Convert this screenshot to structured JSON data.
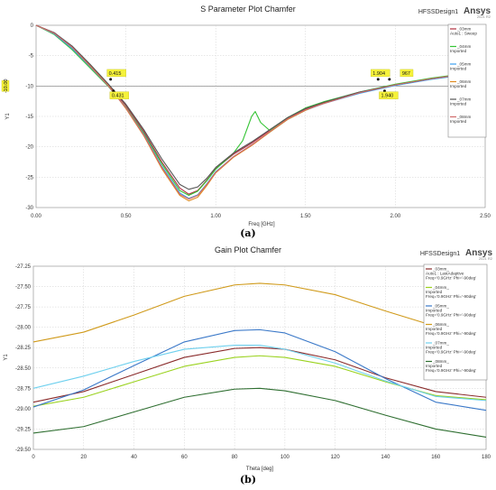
{
  "chart_data": [
    {
      "type": "line",
      "title": "S Parameter Plot Chamfer",
      "design": "HFSSDesign1",
      "brand": "Ansys",
      "brand_sub": "2021 R2",
      "xlabel": "Freq [GHz]",
      "ylabel": "Y1",
      "xlim": [
        0,
        2.5
      ],
      "ylim": [
        -30,
        0
      ],
      "xticks": [
        "0.00",
        "0.50",
        "1.00",
        "1.50",
        "2.00",
        "2.50"
      ],
      "yticks": [
        "0",
        "-5",
        "-10",
        "-15",
        "-20",
        "-25",
        "-30"
      ],
      "grid": true,
      "legend_position": "top-right",
      "reference_line": {
        "y": -10,
        "label": "-10.00"
      },
      "markers": [
        {
          "x": 0.415,
          "y": -8.9,
          "label": "0.415"
        },
        {
          "x": 0.431,
          "y": -10.8,
          "label": "0.431"
        },
        {
          "x": 1.904,
          "y": -8.9,
          "label": "1.904"
        },
        {
          "x": 1.967,
          "y": -8.9,
          "label": "967"
        },
        {
          "x": 1.94,
          "y": -10.8,
          "label": "1.940"
        }
      ],
      "series": [
        {
          "name": "_03mm",
          "legend_sub": "Auto1 : Sweep",
          "color": "#b03040",
          "x": [
            0,
            0.1,
            0.2,
            0.3,
            0.4,
            0.5,
            0.6,
            0.7,
            0.8,
            0.85,
            0.9,
            0.95,
            1.0,
            1.1,
            1.2,
            1.3,
            1.4,
            1.5,
            1.6,
            1.8,
            2.0,
            2.2,
            2.5
          ],
          "y": [
            0,
            -1.2,
            -3.5,
            -6.5,
            -9.7,
            -13.2,
            -17.5,
            -22.5,
            -26.8,
            -27.8,
            -27.2,
            -25.5,
            -23.6,
            -21.2,
            -19.4,
            -17.3,
            -15.3,
            -13.8,
            -12.8,
            -11.1,
            -9.8,
            -8.8,
            -7.6
          ]
        },
        {
          "name": "_04mm",
          "legend_sub": "Imported",
          "color": "#35c435",
          "x": [
            0,
            0.1,
            0.2,
            0.3,
            0.4,
            0.5,
            0.6,
            0.7,
            0.8,
            0.85,
            0.9,
            0.95,
            1.0,
            1.1,
            1.15,
            1.2,
            1.22,
            1.25,
            1.3,
            1.4,
            1.5,
            1.6,
            1.8,
            2.0,
            2.2,
            2.5
          ],
          "y": [
            0,
            -1.5,
            -4.0,
            -7.0,
            -10.0,
            -13.5,
            -17.8,
            -22.8,
            -27.2,
            -28.0,
            -27.3,
            -25.6,
            -23.7,
            -21.0,
            -19.0,
            -15.0,
            -14.2,
            -16.0,
            -17.3,
            -15.2,
            -13.6,
            -12.6,
            -11.0,
            -9.7,
            -8.7,
            -7.5
          ]
        },
        {
          "name": "_05mm",
          "legend_sub": "Imported",
          "color": "#3aa0f0",
          "x": [
            0,
            0.1,
            0.2,
            0.3,
            0.4,
            0.5,
            0.6,
            0.7,
            0.8,
            0.85,
            0.9,
            0.95,
            1.0,
            1.1,
            1.2,
            1.3,
            1.4,
            1.5,
            1.6,
            1.8,
            2.0,
            2.2,
            2.5
          ],
          "y": [
            0,
            -1.4,
            -3.8,
            -6.8,
            -9.9,
            -13.6,
            -18.0,
            -23.2,
            -27.6,
            -28.5,
            -27.9,
            -26.1,
            -24.1,
            -21.6,
            -19.7,
            -17.6,
            -15.5,
            -14.0,
            -12.9,
            -11.2,
            -9.9,
            -8.9,
            -7.7
          ]
        },
        {
          "name": "_06mm",
          "legend_sub": "Imported",
          "color": "#e08a20",
          "x": [
            0,
            0.1,
            0.2,
            0.3,
            0.4,
            0.5,
            0.6,
            0.7,
            0.8,
            0.85,
            0.9,
            0.95,
            1.0,
            1.1,
            1.2,
            1.3,
            1.4,
            1.5,
            1.6,
            1.8,
            2.0,
            2.2,
            2.5
          ],
          "y": [
            0,
            -1.3,
            -3.6,
            -6.6,
            -9.8,
            -13.7,
            -18.2,
            -23.6,
            -28.0,
            -28.9,
            -28.3,
            -26.4,
            -24.3,
            -21.7,
            -19.8,
            -17.6,
            -15.5,
            -14.0,
            -12.8,
            -11.1,
            -9.8,
            -8.8,
            -7.6
          ]
        },
        {
          "name": "_07mm",
          "legend_sub": "Imported",
          "color": "#555555",
          "x": [
            0,
            0.1,
            0.2,
            0.3,
            0.4,
            0.5,
            0.6,
            0.7,
            0.8,
            0.85,
            0.9,
            0.95,
            1.0,
            1.1,
            1.2,
            1.3,
            1.4,
            1.5,
            1.6,
            1.8,
            2.0,
            2.2,
            2.5
          ],
          "y": [
            0,
            -1.2,
            -3.4,
            -6.4,
            -9.6,
            -13.0,
            -17.2,
            -22.0,
            -26.2,
            -27.0,
            -26.6,
            -25.2,
            -23.4,
            -21.0,
            -19.2,
            -17.2,
            -15.2,
            -13.7,
            -12.7,
            -11.0,
            -9.8,
            -8.8,
            -7.6
          ]
        },
        {
          "name": "_08mm",
          "legend_sub": "Imported",
          "color": "#d06a6a",
          "x": [
            0,
            0.1,
            0.2,
            0.3,
            0.4,
            0.5,
            0.6,
            0.7,
            0.8,
            0.85,
            0.9,
            0.95,
            1.0,
            1.1,
            1.2,
            1.3,
            1.4,
            1.5,
            1.6,
            1.8,
            2.0,
            2.2,
            2.5
          ],
          "y": [
            0,
            -1.3,
            -3.6,
            -6.7,
            -9.9,
            -13.6,
            -18.1,
            -23.4,
            -27.8,
            -28.6,
            -28.0,
            -26.2,
            -24.2,
            -21.6,
            -19.7,
            -17.5,
            -15.4,
            -13.9,
            -12.9,
            -11.1,
            -9.8,
            -8.8,
            -7.6
          ]
        }
      ]
    },
    {
      "type": "line",
      "title": "Gain Plot Chamfer",
      "design": "HFSSDesign1",
      "brand": "Ansys",
      "brand_sub": "2021 R2",
      "xlabel": "Theta [deg]",
      "ylabel": "Y1",
      "xlim": [
        0,
        180
      ],
      "ylim": [
        -29.5,
        -27.25
      ],
      "xticks": [
        "0",
        "20",
        "40",
        "60",
        "80",
        "100",
        "120",
        "140",
        "160",
        "180"
      ],
      "yticks": [
        "-27.25",
        "-27.50",
        "-27.75",
        "-28.00",
        "-28.25",
        "-28.50",
        "-28.75",
        "-29.00",
        "-29.25",
        "-29.50"
      ],
      "grid": true,
      "legend_position": "top-right",
      "series": [
        {
          "name": "_03mm_",
          "legend_sub": "Auto1 : LastAdaptive",
          "legend_sub2": "Freq='0.9GHz' Phi='-90deg'",
          "color": "#8a2b2b",
          "x": [
            0,
            20,
            40,
            60,
            80,
            90,
            100,
            120,
            140,
            160,
            180
          ],
          "y": [
            -28.92,
            -28.79,
            -28.58,
            -28.37,
            -28.26,
            -28.25,
            -28.27,
            -28.4,
            -28.62,
            -28.79,
            -28.86
          ]
        },
        {
          "name": "_04mm_",
          "legend_sub": "Imported",
          "legend_sub2": "Freq='0.9GHz' Phi='-90deg'",
          "color": "#9ad21e",
          "x": [
            0,
            20,
            40,
            60,
            80,
            90,
            100,
            120,
            140,
            160,
            180
          ],
          "y": [
            -28.97,
            -28.86,
            -28.67,
            -28.48,
            -28.37,
            -28.35,
            -28.37,
            -28.48,
            -28.67,
            -28.84,
            -28.89
          ]
        },
        {
          "name": "_05mm_",
          "legend_sub": "Imported",
          "legend_sub2": "Freq='0.9GHz' Phi='-90deg'",
          "color": "#3a78c8",
          "x": [
            0,
            20,
            40,
            60,
            80,
            90,
            100,
            120,
            140,
            160,
            180
          ],
          "y": [
            -28.98,
            -28.77,
            -28.47,
            -28.18,
            -28.04,
            -28.03,
            -28.07,
            -28.3,
            -28.63,
            -28.92,
            -29.02
          ]
        },
        {
          "name": "_06mm_",
          "legend_sub": "Imported",
          "legend_sub2": "Freq='0.9GHz' Phi='-90deg'",
          "color": "#d09a1a",
          "x": [
            0,
            20,
            40,
            60,
            80,
            90,
            100,
            120,
            140,
            160,
            180
          ],
          "y": [
            -28.18,
            -28.06,
            -27.85,
            -27.62,
            -27.48,
            -27.46,
            -27.48,
            -27.6,
            -27.8,
            -27.99,
            -28.04
          ]
        },
        {
          "name": "_07mm_",
          "legend_sub": "Imported",
          "legend_sub2": "Freq='0.9GHz' Phi='-90deg'",
          "color": "#6ed0ee",
          "x": [
            0,
            20,
            40,
            60,
            80,
            90,
            100,
            120,
            140,
            160,
            180
          ],
          "y": [
            -28.75,
            -28.6,
            -28.42,
            -28.27,
            -28.22,
            -28.22,
            -28.27,
            -28.44,
            -28.66,
            -28.85,
            -28.9
          ]
        },
        {
          "name": "_08mm_",
          "legend_sub": "Imported",
          "legend_sub2": "Freq='0.9GHz' Phi='-90deg'",
          "color": "#2e6e30",
          "x": [
            0,
            20,
            40,
            60,
            80,
            90,
            100,
            120,
            140,
            160,
            180
          ],
          "y": [
            -29.3,
            -29.22,
            -29.04,
            -28.86,
            -28.76,
            -28.75,
            -28.78,
            -28.9,
            -29.08,
            -29.25,
            -29.35
          ]
        }
      ]
    }
  ],
  "captions": [
    "(a)",
    "(b)"
  ]
}
